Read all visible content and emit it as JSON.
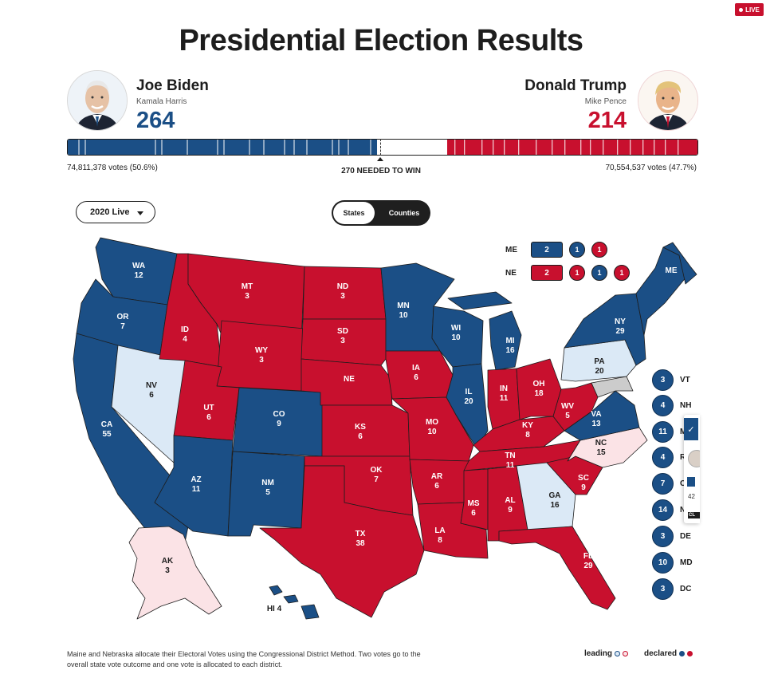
{
  "header": {
    "live_badge": "LIVE",
    "title": "Presidential Election Results",
    "win_label": "270 NEEDED TO WIN"
  },
  "candidates": {
    "biden": {
      "name": "Joe Biden",
      "running_mate": "Kamala Harris",
      "electoral_votes": "264",
      "popular_vote": "74,811,378 votes (50.6%)"
    },
    "trump": {
      "name": "Donald Trump",
      "running_mate": "Mike Pence",
      "electoral_votes": "214",
      "popular_vote": "70,554,537 votes (47.7%)"
    }
  },
  "ev_bar": {
    "total": 538,
    "dem": 264,
    "rep": 214,
    "threshold": 270
  },
  "controls": {
    "year_select": "2020 Live",
    "toggle_states": "States",
    "toggle_counties": "Counties"
  },
  "colors": {
    "dem_declared": "#1b4f86",
    "rep_declared": "#c8102e",
    "dem_leading": "#dbe9f6",
    "rep_leading": "#fbe3e6",
    "border": "#1d1d1d"
  },
  "split_states": {
    "me": {
      "label": "ME",
      "at_large": "2",
      "districts": [
        "1",
        "1"
      ],
      "district_parties": [
        "dem",
        "rep"
      ]
    },
    "ne": {
      "label": "NE",
      "at_large": "2",
      "districts": [
        "1",
        "1",
        "1"
      ],
      "district_parties": [
        "rep",
        "dem",
        "rep"
      ]
    }
  },
  "states": [
    {
      "abbr": "WA",
      "ev": "12",
      "status": "dem"
    },
    {
      "abbr": "OR",
      "ev": "7",
      "status": "dem"
    },
    {
      "abbr": "CA",
      "ev": "55",
      "status": "dem"
    },
    {
      "abbr": "NV",
      "ev": "6",
      "status": "dem-leading"
    },
    {
      "abbr": "ID",
      "ev": "4",
      "status": "rep"
    },
    {
      "abbr": "MT",
      "ev": "3",
      "status": "rep"
    },
    {
      "abbr": "WY",
      "ev": "3",
      "status": "rep"
    },
    {
      "abbr": "UT",
      "ev": "6",
      "status": "rep"
    },
    {
      "abbr": "CO",
      "ev": "9",
      "status": "dem"
    },
    {
      "abbr": "AZ",
      "ev": "11",
      "status": "dem"
    },
    {
      "abbr": "NM",
      "ev": "5",
      "status": "dem"
    },
    {
      "abbr": "ND",
      "ev": "3",
      "status": "rep"
    },
    {
      "abbr": "SD",
      "ev": "3",
      "status": "rep"
    },
    {
      "abbr": "NE",
      "ev": "",
      "status": "rep"
    },
    {
      "abbr": "KS",
      "ev": "6",
      "status": "rep"
    },
    {
      "abbr": "OK",
      "ev": "7",
      "status": "rep"
    },
    {
      "abbr": "TX",
      "ev": "38",
      "status": "rep"
    },
    {
      "abbr": "MN",
      "ev": "10",
      "status": "dem"
    },
    {
      "abbr": "IA",
      "ev": "6",
      "status": "rep"
    },
    {
      "abbr": "MO",
      "ev": "10",
      "status": "rep"
    },
    {
      "abbr": "AR",
      "ev": "6",
      "status": "rep"
    },
    {
      "abbr": "LA",
      "ev": "8",
      "status": "rep"
    },
    {
      "abbr": "WI",
      "ev": "10",
      "status": "dem"
    },
    {
      "abbr": "IL",
      "ev": "20",
      "status": "dem"
    },
    {
      "abbr": "MI",
      "ev": "16",
      "status": "dem"
    },
    {
      "abbr": "IN",
      "ev": "11",
      "status": "rep"
    },
    {
      "abbr": "OH",
      "ev": "18",
      "status": "rep"
    },
    {
      "abbr": "KY",
      "ev": "8",
      "status": "rep"
    },
    {
      "abbr": "TN",
      "ev": "11",
      "status": "rep"
    },
    {
      "abbr": "MS",
      "ev": "6",
      "status": "rep"
    },
    {
      "abbr": "AL",
      "ev": "9",
      "status": "rep"
    },
    {
      "abbr": "GA",
      "ev": "16",
      "status": "dem-leading"
    },
    {
      "abbr": "FL",
      "ev": "29",
      "status": "rep"
    },
    {
      "abbr": "SC",
      "ev": "9",
      "status": "rep"
    },
    {
      "abbr": "NC",
      "ev": "15",
      "status": "rep-leading"
    },
    {
      "abbr": "VA",
      "ev": "13",
      "status": "dem"
    },
    {
      "abbr": "WV",
      "ev": "5",
      "status": "rep"
    },
    {
      "abbr": "PA",
      "ev": "20",
      "status": "dem-leading"
    },
    {
      "abbr": "NY",
      "ev": "29",
      "status": "dem"
    },
    {
      "abbr": "ME",
      "ev": "",
      "status": "dem"
    },
    {
      "abbr": "AK",
      "ev": "3",
      "status": "rep-leading"
    },
    {
      "abbr": "HI",
      "ev": "4",
      "status": "dem"
    }
  ],
  "small_states": [
    {
      "abbr": "VT",
      "ev": "3"
    },
    {
      "abbr": "NH",
      "ev": "4"
    },
    {
      "abbr": "M",
      "ev": "11"
    },
    {
      "abbr": "R",
      "ev": "4"
    },
    {
      "abbr": "C",
      "ev": "7"
    },
    {
      "abbr": "N",
      "ev": "14"
    },
    {
      "abbr": "DE",
      "ev": "3"
    },
    {
      "abbr": "MD",
      "ev": "10"
    },
    {
      "abbr": "DC",
      "ev": "3"
    }
  ],
  "popup": {
    "value": "42",
    "badge": "CL"
  },
  "footer": {
    "note": "Maine and Nebraska allocate their Electoral Votes using the Congressional District Method. Two votes go to the overall state vote outcome and one vote is allocated to each district.",
    "leading_label": "leading",
    "declared_label": "declared"
  }
}
